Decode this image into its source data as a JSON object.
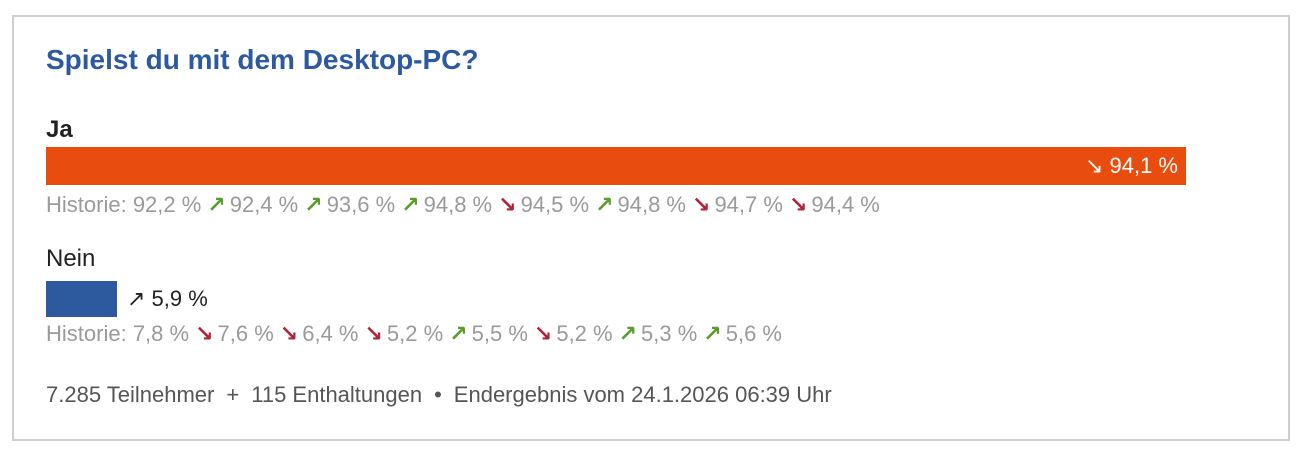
{
  "poll": {
    "title": "Spielst du mit dem Desktop-PC?",
    "history_label": "Historie:",
    "options": [
      {
        "label": "Ja",
        "percent": 94.1,
        "percent_text": "94,1 %",
        "trend": "down",
        "color": "#e84c0e",
        "history": [
          {
            "text": "92,2 %",
            "trend": null
          },
          {
            "text": "92,4 %",
            "trend": "up"
          },
          {
            "text": "93,6 %",
            "trend": "up"
          },
          {
            "text": "94,8 %",
            "trend": "up"
          },
          {
            "text": "94,5 %",
            "trend": "down"
          },
          {
            "text": "94,8 %",
            "trend": "up"
          },
          {
            "text": "94,7 %",
            "trend": "down"
          },
          {
            "text": "94,4 %",
            "trend": "down"
          }
        ]
      },
      {
        "label": "Nein",
        "percent": 5.9,
        "percent_text": "5,9 %",
        "trend": "up",
        "color": "#2d5a9e",
        "history": [
          {
            "text": "7,8 %",
            "trend": null
          },
          {
            "text": "7,6 %",
            "trend": "down"
          },
          {
            "text": "6,4 %",
            "trend": "down"
          },
          {
            "text": "5,2 %",
            "trend": "down"
          },
          {
            "text": "5,5 %",
            "trend": "up"
          },
          {
            "text": "5,2 %",
            "trend": "down"
          },
          {
            "text": "5,3 %",
            "trend": "up"
          },
          {
            "text": "5,6 %",
            "trend": "up"
          }
        ]
      }
    ],
    "footer": {
      "participants": "7.285 Teilnehmer",
      "plus": "+",
      "abstentions": "115 Enthaltungen",
      "bullet": "•",
      "result": "Endergebnis vom 24.1.2026 06:39 Uhr"
    },
    "trend_colors": {
      "up": "#5a9e2a",
      "down": "#b0243a"
    },
    "trend_icons": {
      "up": "trend-up-arrow-icon",
      "down": "trend-down-arrow-icon"
    }
  },
  "chart_data": {
    "type": "bar",
    "categories": [
      "Ja",
      "Nein"
    ],
    "values": [
      94.1,
      5.9
    ],
    "title": "Spielst du mit dem Desktop-PC?",
    "xlabel": "",
    "ylabel": "",
    "xlim": [
      0,
      100
    ],
    "history": {
      "Ja": [
        92.2,
        92.4,
        93.6,
        94.8,
        94.5,
        94.8,
        94.7,
        94.4
      ],
      "Nein": [
        7.8,
        7.6,
        6.4,
        5.2,
        5.5,
        5.2,
        5.3,
        5.6
      ]
    },
    "grid": false,
    "legend": "none"
  }
}
